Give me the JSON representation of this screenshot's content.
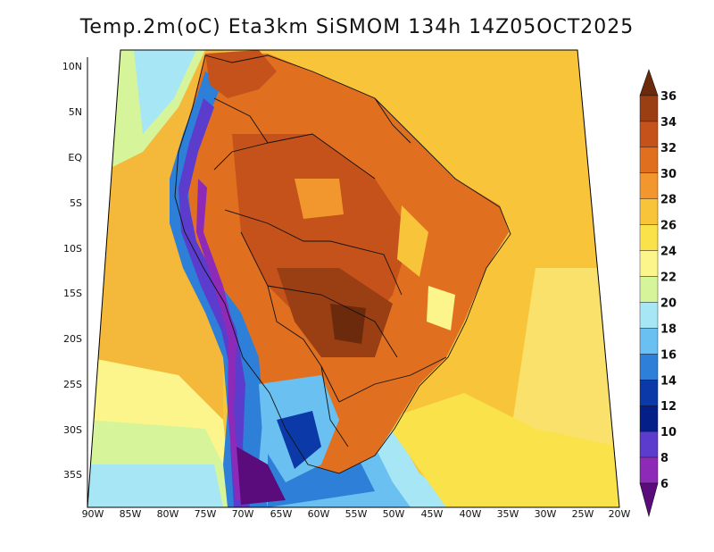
{
  "title": "Temp.2m(oC) Eta3km SiSMOM 134h 14Z05OCT2025",
  "map": {
    "lat_ticks": [
      "10N",
      "5N",
      "EQ",
      "5S",
      "10S",
      "15S",
      "20S",
      "25S",
      "30S",
      "35S"
    ],
    "lon_ticks": [
      "90W",
      "85W",
      "80W",
      "75W",
      "70W",
      "65W",
      "60W",
      "55W",
      "50W",
      "45W",
      "40W",
      "35W",
      "30W",
      "25W",
      "20W"
    ]
  },
  "colorbar": {
    "labels": [
      "36",
      "34",
      "32",
      "30",
      "28",
      "26",
      "24",
      "22",
      "20",
      "18",
      "16",
      "14",
      "12",
      "10",
      "8",
      "6"
    ],
    "colors": [
      "#6b2a0c",
      "#9a3f14",
      "#c4521a",
      "#e0701f",
      "#f2972e",
      "#f7c43a",
      "#f9e24a",
      "#fbf58c",
      "#d6f59a",
      "#a7e6f4",
      "#6ac0f0",
      "#2e7fd8",
      "#0b3aa8",
      "#051f88",
      "#5b3ccc",
      "#8d2bb8",
      "#5a0b7c"
    ]
  }
}
